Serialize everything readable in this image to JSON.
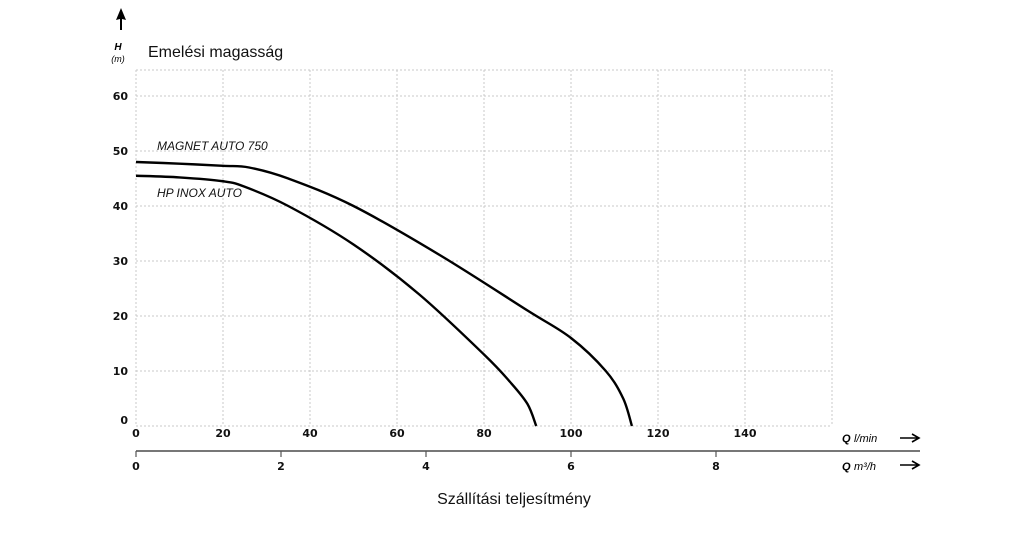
{
  "chart_data": {
    "type": "line",
    "title": "Emelési magasság",
    "xlabel": "Szállítási teljesítmény",
    "ylabel": "H",
    "yunit": "(m)",
    "x_axis_label": "Q",
    "x_axis_unit": "l/min",
    "x2_axis_label": "Q",
    "x2_axis_unit": "m³/h",
    "xlim": [
      0,
      160
    ],
    "ylim": [
      0,
      65
    ],
    "x_ticks": [
      0,
      20,
      40,
      60,
      80,
      100,
      120,
      140
    ],
    "x2_ticks": [
      0,
      2,
      4,
      6,
      8
    ],
    "y_ticks": [
      0,
      10,
      20,
      30,
      40,
      50,
      60
    ],
    "grid": true,
    "series": [
      {
        "name": "MAGNET AUTO 750",
        "x": [
          0,
          10,
          20,
          26,
          35,
          50,
          70,
          90,
          100,
          108,
          112,
          114
        ],
        "y": [
          48,
          47.7,
          47.3,
          47,
          45,
          40,
          31,
          21,
          16,
          10,
          5,
          0
        ]
      },
      {
        "name": "HP INOX AUTO",
        "x": [
          0,
          10,
          20,
          25,
          35,
          50,
          65,
          80,
          86,
          90,
          92
        ],
        "y": [
          45.5,
          45.2,
          44.5,
          43.5,
          40,
          33,
          24,
          13,
          8,
          4,
          0
        ]
      }
    ]
  }
}
